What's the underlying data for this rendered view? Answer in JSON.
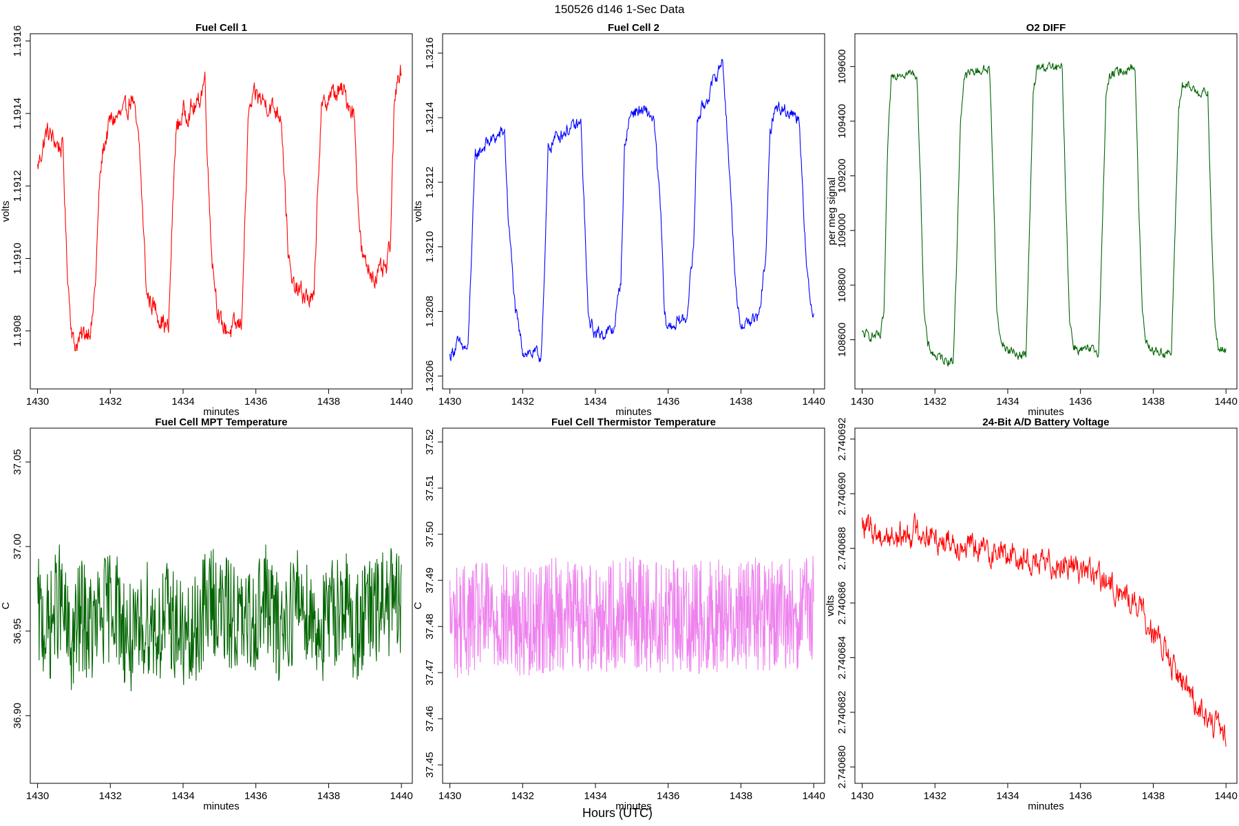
{
  "figure": {
    "title": "150526   d146   1-Sec Data",
    "xlabel": "Hours (UTC)"
  },
  "chart_data": [
    {
      "type": "line",
      "title": "Fuel Cell 1",
      "xlabel": "minutes",
      "ylabel": "volts",
      "color": "#ff0000",
      "xlim": [
        1429.8,
        1440.3
      ],
      "ylim": [
        1.19064,
        1.19162
      ],
      "xticks": [
        1430,
        1432,
        1434,
        1436,
        1438,
        1440
      ],
      "yticks": [
        1.1908,
        1.191,
        1.1912,
        1.1914,
        1.1916
      ],
      "ytick_labels": [
        "1.1908",
        "1.1910",
        "1.1912",
        "1.1914",
        "1.1916"
      ],
      "series": [
        {
          "name": "Fuel Cell 1",
          "x": [
            1430,
            1430.25,
            1430.5,
            1430.7,
            1430.8,
            1430.9,
            1431.0,
            1431.2,
            1431.5,
            1431.6,
            1431.7,
            1431.8,
            1432.0,
            1432.4,
            1432.6,
            1432.8,
            1432.9,
            1433.0,
            1433.3,
            1433.6,
            1433.7,
            1433.8,
            1434.0,
            1434.4,
            1434.6,
            1434.7,
            1434.8,
            1435.0,
            1435.3,
            1435.6,
            1435.7,
            1435.8,
            1436.0,
            1436.4,
            1436.7,
            1436.8,
            1436.9,
            1437.0,
            1437.3,
            1437.6,
            1437.7,
            1437.8,
            1438.0,
            1438.4,
            1438.7,
            1438.8,
            1438.9,
            1439.0,
            1439.3,
            1439.6,
            1439.7,
            1439.8,
            1439.9,
            1440.0
          ],
          "y": [
            1.19125,
            1.19135,
            1.19132,
            1.1913,
            1.191,
            1.19085,
            1.19076,
            1.19078,
            1.19082,
            1.19095,
            1.1912,
            1.1913,
            1.19138,
            1.1914,
            1.19145,
            1.1913,
            1.1911,
            1.1909,
            1.19085,
            1.1908,
            1.1911,
            1.19135,
            1.1914,
            1.19142,
            1.1915,
            1.1912,
            1.191,
            1.19082,
            1.1908,
            1.19082,
            1.1911,
            1.1914,
            1.19145,
            1.19142,
            1.1914,
            1.1912,
            1.191,
            1.19092,
            1.1909,
            1.19088,
            1.1912,
            1.1914,
            1.19145,
            1.19146,
            1.1914,
            1.19118,
            1.19102,
            1.19098,
            1.19095,
            1.19097,
            1.19105,
            1.1914,
            1.19152,
            1.19152
          ]
        }
      ]
    },
    {
      "type": "line",
      "title": "Fuel Cell 2",
      "xlabel": "minutes",
      "ylabel": "volts",
      "color": "#0000ff",
      "xlim": [
        1429.8,
        1440.3
      ],
      "ylim": [
        1.32056,
        1.32166
      ],
      "xticks": [
        1430,
        1432,
        1434,
        1436,
        1438,
        1440
      ],
      "yticks": [
        1.3206,
        1.3208,
        1.321,
        1.3212,
        1.3214,
        1.3216
      ],
      "ytick_labels": [
        "1.3206",
        "1.3208",
        "1.3210",
        "1.3212",
        "1.3214",
        "1.3216"
      ],
      "series": [
        {
          "name": "Fuel Cell 2",
          "x": [
            1430,
            1430.2,
            1430.5,
            1430.6,
            1430.7,
            1431.0,
            1431.3,
            1431.5,
            1431.6,
            1431.8,
            1432.0,
            1432.5,
            1432.6,
            1432.7,
            1432.9,
            1433.2,
            1433.6,
            1433.7,
            1433.8,
            1434.0,
            1434.5,
            1434.7,
            1434.8,
            1434.9,
            1435.0,
            1435.3,
            1435.6,
            1435.8,
            1435.9,
            1436.0,
            1436.5,
            1436.7,
            1436.8,
            1436.9,
            1437.0,
            1437.5,
            1437.6,
            1437.8,
            1437.9,
            1438.0,
            1438.5,
            1438.7,
            1438.8,
            1438.9,
            1439.0,
            1439.3,
            1439.6,
            1439.8,
            1439.9,
            1440.0
          ],
          "y": [
            1.32066,
            1.3207,
            1.32068,
            1.321,
            1.32128,
            1.32132,
            1.32134,
            1.32136,
            1.3211,
            1.3208,
            1.32068,
            1.32066,
            1.3209,
            1.3213,
            1.32134,
            1.32136,
            1.32138,
            1.3211,
            1.32078,
            1.32073,
            1.32074,
            1.3209,
            1.3213,
            1.32138,
            1.32142,
            1.32142,
            1.3214,
            1.3211,
            1.32078,
            1.32075,
            1.32078,
            1.321,
            1.3214,
            1.32142,
            1.32144,
            1.32158,
            1.3214,
            1.321,
            1.3208,
            1.32076,
            1.32078,
            1.321,
            1.32135,
            1.32142,
            1.32143,
            1.32142,
            1.3214,
            1.32095,
            1.32082,
            1.3208
          ]
        }
      ]
    },
    {
      "type": "line",
      "title": "O2 DIFF",
      "xlabel": "minutes",
      "ylabel": "per meg signal",
      "color": "#006400",
      "xlim": [
        1429.8,
        1440.3
      ],
      "ylim": [
        108420,
        109720
      ],
      "xticks": [
        1430,
        1432,
        1434,
        1436,
        1438,
        1440
      ],
      "yticks": [
        108600,
        108800,
        109000,
        109200,
        109400,
        109600
      ],
      "ytick_labels": [
        "108600",
        "108800",
        "109000",
        "109200",
        "109400",
        "109600"
      ],
      "series": [
        {
          "name": "O2 DIFF",
          "x": [
            1430,
            1430.5,
            1430.6,
            1430.7,
            1430.8,
            1431.0,
            1431.5,
            1431.6,
            1431.7,
            1431.8,
            1432.0,
            1432.5,
            1432.6,
            1432.7,
            1432.8,
            1433.0,
            1433.5,
            1433.6,
            1433.7,
            1433.8,
            1434.0,
            1434.5,
            1434.6,
            1434.7,
            1434.8,
            1435.0,
            1435.5,
            1435.6,
            1435.7,
            1435.8,
            1436.0,
            1436.5,
            1436.6,
            1436.7,
            1436.8,
            1437.0,
            1437.5,
            1437.6,
            1437.7,
            1437.8,
            1438.0,
            1438.5,
            1438.6,
            1438.7,
            1438.8,
            1439.0,
            1439.5,
            1439.6,
            1439.7,
            1439.8,
            1440.0
          ],
          "y": [
            108620,
            108610,
            108700,
            109300,
            109560,
            109580,
            109570,
            109200,
            108700,
            108580,
            108540,
            108520,
            108900,
            109400,
            109560,
            109580,
            109590,
            109200,
            108700,
            108600,
            108560,
            108540,
            109000,
            109500,
            109590,
            109600,
            109590,
            109100,
            108680,
            108580,
            108560,
            108560,
            109000,
            109500,
            109560,
            109580,
            109600,
            109100,
            108700,
            108600,
            108560,
            108550,
            109000,
            109450,
            109530,
            109520,
            109500,
            109000,
            108650,
            108560,
            108560
          ]
        }
      ]
    },
    {
      "type": "line",
      "title": "Fuel Cell MPT Temperature",
      "xlabel": "minutes",
      "ylabel": "C",
      "color": "#006400",
      "xlim": [
        1429.8,
        1440.3
      ],
      "ylim": [
        36.86,
        37.07
      ],
      "xticks": [
        1430,
        1432,
        1434,
        1436,
        1438,
        1440
      ],
      "yticks": [
        36.9,
        36.95,
        37.0,
        37.05
      ],
      "ytick_labels": [
        "36.90",
        "36.95",
        "37.00",
        "37.05"
      ],
      "series": [
        {
          "name": "Fuel Cell MPT Temperature",
          "x": [
            1430,
            1430.3,
            1430.6,
            1430.9,
            1431.2,
            1431.5,
            1431.8,
            1432.1,
            1432.4,
            1432.7,
            1433.0,
            1433.3,
            1433.6,
            1433.9,
            1434.2,
            1434.5,
            1434.8,
            1435.1,
            1435.4,
            1435.7,
            1436.0,
            1436.3,
            1436.6,
            1436.9,
            1437.2,
            1437.5,
            1437.8,
            1438.1,
            1438.4,
            1438.7,
            1439.0,
            1439.3,
            1439.6,
            1440.0
          ],
          "y": [
            36.96,
            36.95,
            36.97,
            36.94,
            36.96,
            36.95,
            36.96,
            36.97,
            36.95,
            36.94,
            36.96,
            36.95,
            36.96,
            36.95,
            36.94,
            36.96,
            36.97,
            36.96,
            36.96,
            36.95,
            36.96,
            36.97,
            36.95,
            36.96,
            36.97,
            36.96,
            36.95,
            36.96,
            36.97,
            36.95,
            36.96,
            36.96,
            36.97,
            36.96
          ]
        }
      ]
    },
    {
      "type": "line",
      "title": "Fuel Cell Thermistor Temperature",
      "xlabel": "minutes",
      "ylabel": "C",
      "color": "#ee82ee",
      "xlim": [
        1429.8,
        1440.3
      ],
      "ylim": [
        37.446,
        37.523
      ],
      "xticks": [
        1430,
        1432,
        1434,
        1436,
        1438,
        1440
      ],
      "yticks": [
        37.45,
        37.46,
        37.47,
        37.48,
        37.49,
        37.5,
        37.51,
        37.52
      ],
      "ytick_labels": [
        "37.45",
        "37.46",
        "37.47",
        "37.48",
        "37.49",
        "37.50",
        "37.51",
        "37.52"
      ],
      "series": [
        {
          "name": "Fuel Cell Thermistor Temperature",
          "x": [
            1430,
            1431,
            1432,
            1433,
            1434,
            1435,
            1436,
            1437,
            1438,
            1439,
            1440
          ],
          "y": [
            37.481,
            37.482,
            37.481,
            37.483,
            37.482,
            37.483,
            37.482,
            37.482,
            37.483,
            37.482,
            37.483
          ]
        }
      ]
    },
    {
      "type": "line",
      "title": "24-Bit A/D Battery Voltage",
      "xlabel": "minutes",
      "ylabel": "volts",
      "color": "#ff0000",
      "xlim": [
        1429.8,
        1440.3
      ],
      "ylim": [
        2.7406794,
        2.7406924
      ],
      "xticks": [
        1430,
        1432,
        1434,
        1436,
        1438,
        1440
      ],
      "yticks": [
        2.74068,
        2.740682,
        2.740684,
        2.740686,
        2.740688,
        2.74069,
        2.740692
      ],
      "ytick_labels": [
        "2.740680",
        "2.740682",
        "2.740684",
        "2.740686",
        "2.740688",
        "2.740690",
        "2.740692"
      ],
      "series": [
        {
          "name": "24-Bit A/D Battery Voltage",
          "x": [
            1430,
            1430.5,
            1431.0,
            1431.5,
            1432.0,
            1432.5,
            1433.0,
            1433.5,
            1434.0,
            1434.5,
            1435.0,
            1435.5,
            1436.0,
            1436.5,
            1437.0,
            1437.5,
            1438.0,
            1438.5,
            1439.0,
            1439.5,
            1440.0
          ],
          "y": [
            2.7406888,
            2.7406885,
            2.7406884,
            2.7406887,
            2.7406884,
            2.7406883,
            2.740688,
            2.7406879,
            2.7406878,
            2.7406876,
            2.7406874,
            2.7406875,
            2.7406873,
            2.7406869,
            2.7406865,
            2.740686,
            2.740685,
            2.7406837,
            2.7406828,
            2.7406818,
            2.740681
          ]
        }
      ]
    }
  ]
}
